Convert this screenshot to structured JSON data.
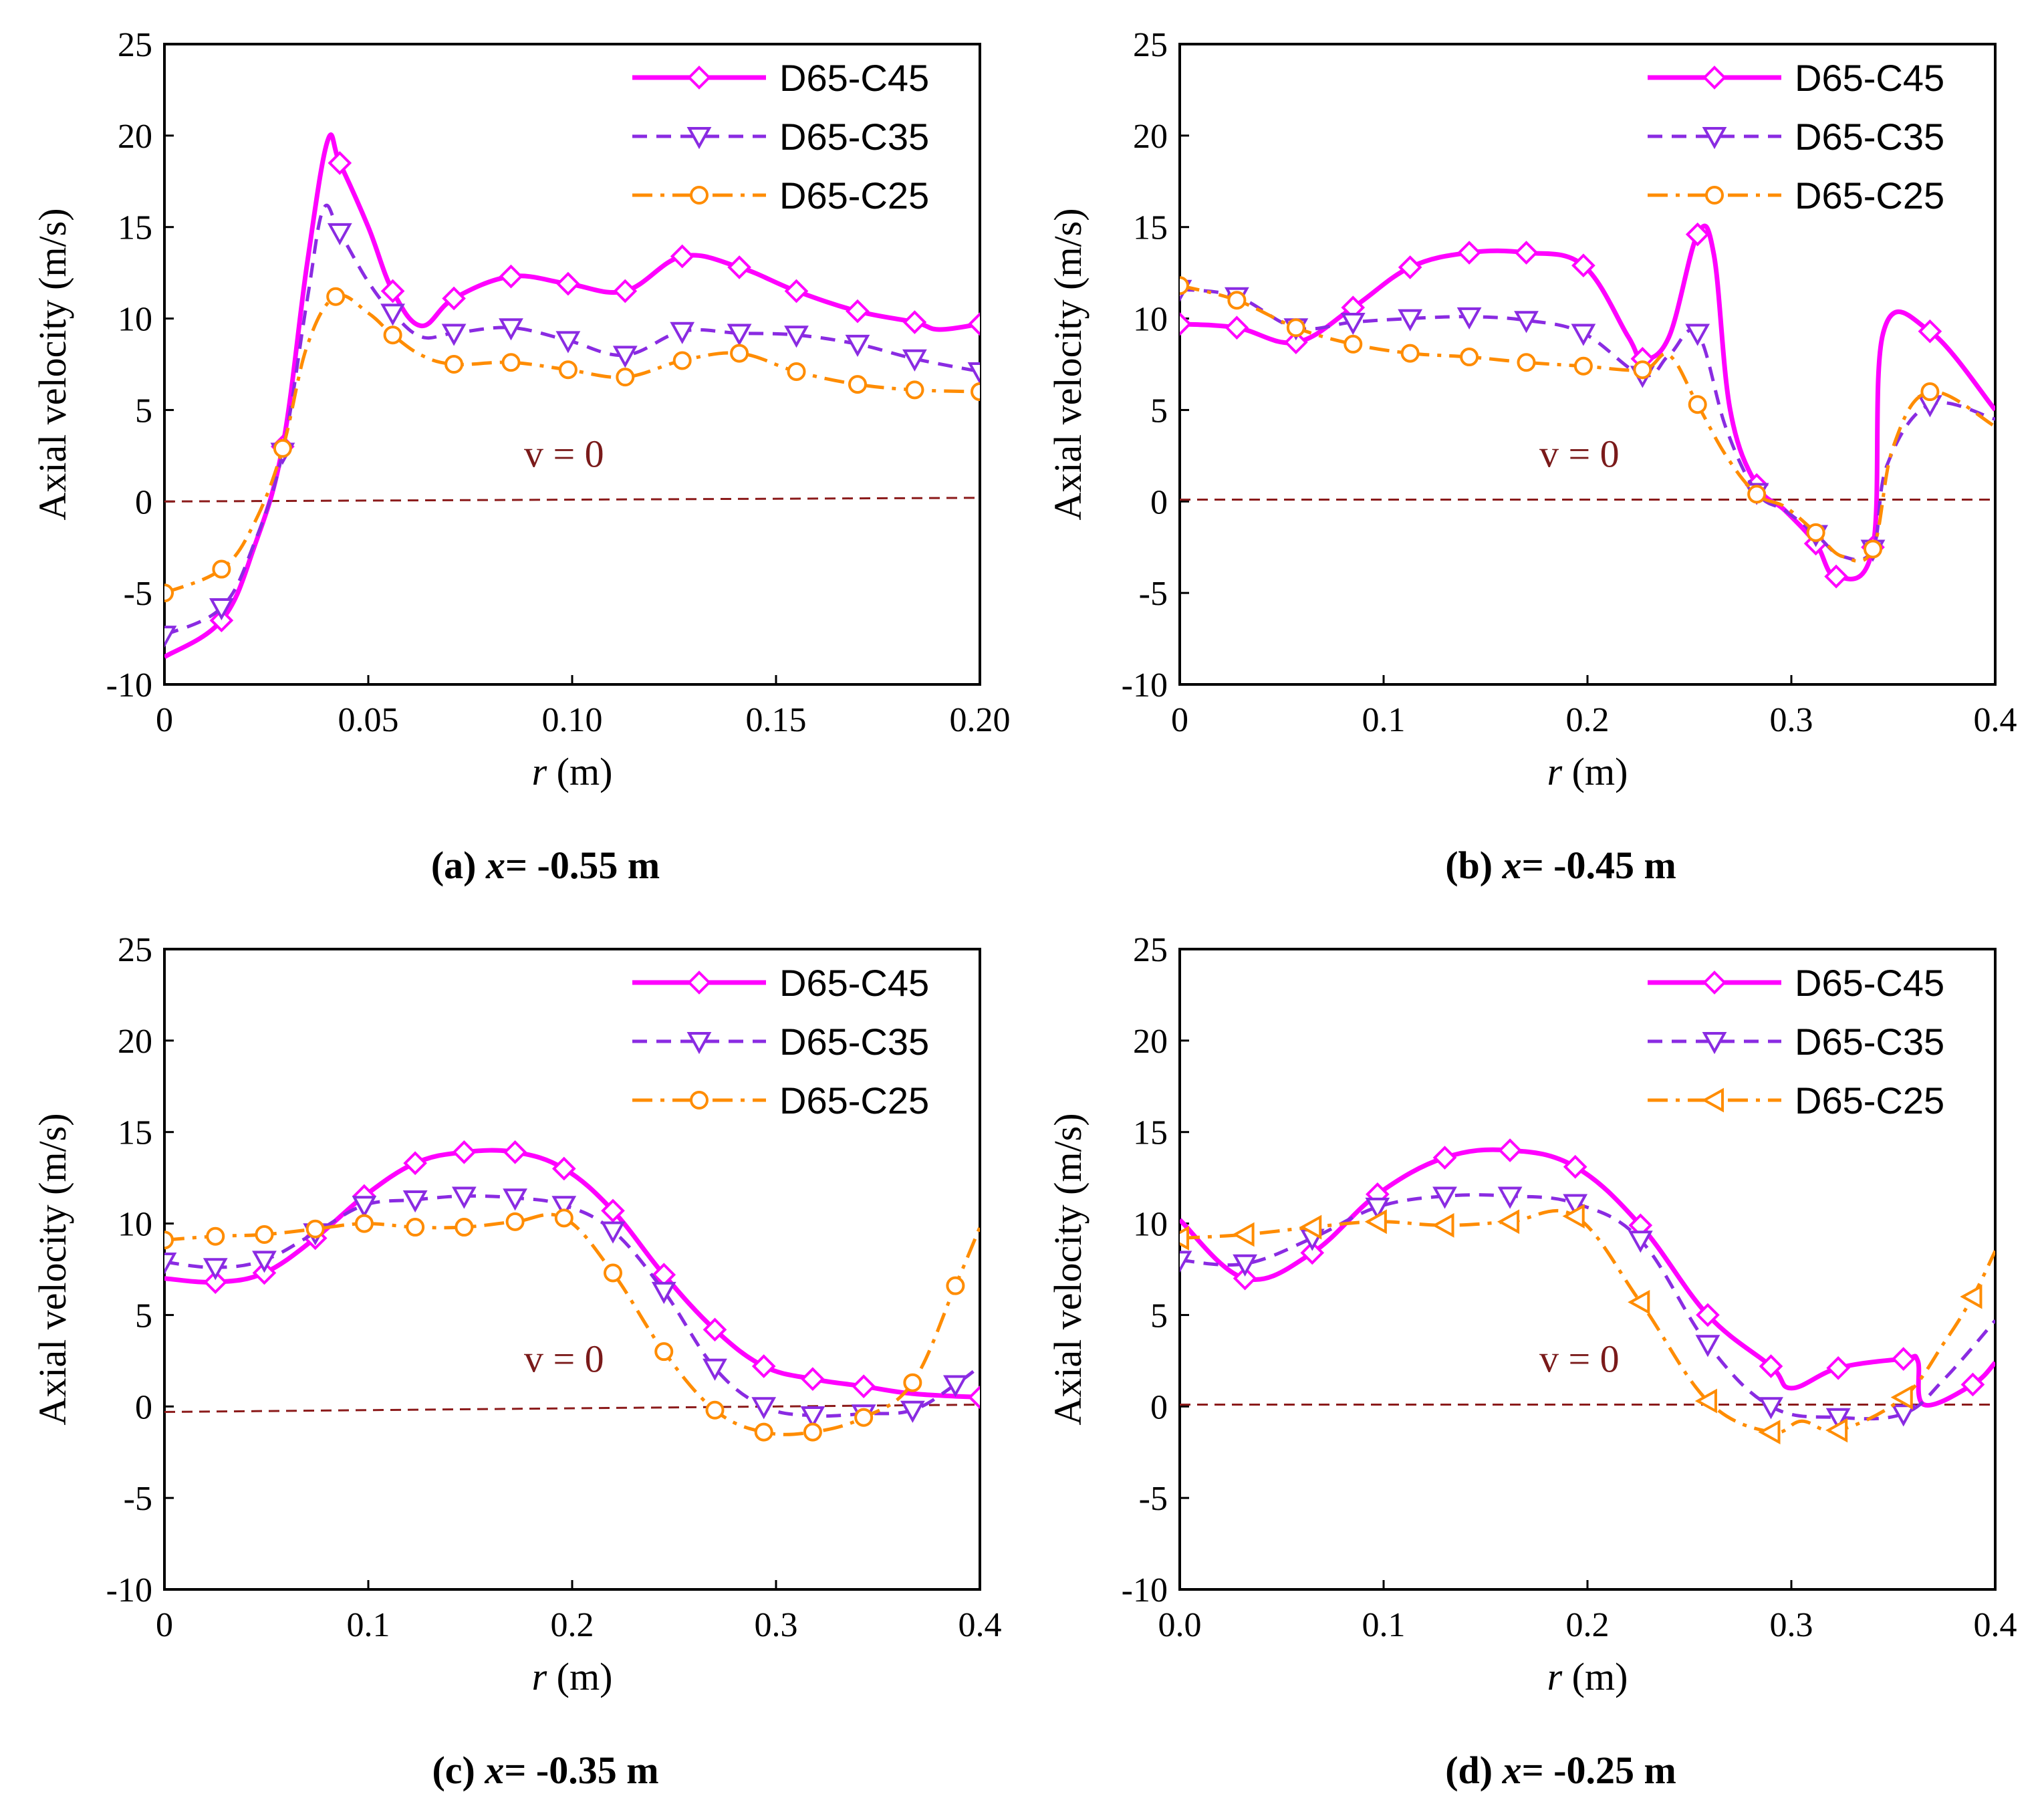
{
  "figure": {
    "colors": {
      "c45": "#ff00ff",
      "c35": "#8a2be2",
      "c25": "#ff8c00",
      "zero": "#8b1a1a"
    },
    "legend_labels": [
      "D65-C45",
      "D65-C35",
      "D65-C25"
    ],
    "zero_label": "v = 0"
  },
  "chart_data": [
    {
      "type": "line",
      "panel": "a",
      "caption": "(a) x= -0.55 m",
      "caption_prefix": "(a) ",
      "caption_var": "x",
      "caption_rest": "= -0.55 m",
      "xlabel": "r (m)",
      "xlabel_var": "r",
      "xlabel_unit": " (m)",
      "ylabel": "Axial velocity (m/s)",
      "xlim": [
        0,
        0.2
      ],
      "ylim": [
        -10,
        25
      ],
      "xticks": [
        0,
        0.05,
        0.1,
        0.15,
        0.2
      ],
      "xtick_labels": [
        "0",
        "0.05",
        "0.10",
        "0.15",
        "0.20"
      ],
      "yticks": [
        -10,
        -5,
        0,
        5,
        10,
        15,
        20,
        25
      ],
      "ytick_labels": [
        "-10",
        "-5",
        "0",
        "5",
        "10",
        "15",
        "20",
        "25"
      ],
      "zero_line": [
        [
          0,
          0
        ],
        [
          0.2,
          0.2
        ]
      ],
      "series": [
        {
          "name": "D65-C45",
          "marker": "diamond",
          "dash": "solid",
          "x": [
            0,
            0.014,
            0.022,
            0.029,
            0.035,
            0.04,
            0.043,
            0.05,
            0.056,
            0.063,
            0.071,
            0.085,
            0.099,
            0.113,
            0.127,
            0.141,
            0.155,
            0.17,
            0.184,
            0.19,
            0.2
          ],
          "y": [
            -8.5,
            -6.5,
            -2.5,
            3,
            13,
            19.7,
            18.5,
            15,
            11.5,
            9.6,
            11.1,
            12.3,
            11.9,
            11.5,
            13.4,
            12.8,
            11.5,
            10.4,
            9.8,
            9.4,
            9.7
          ],
          "marker_idx": [
            1,
            3,
            6,
            8,
            10,
            11,
            12,
            13,
            14,
            15,
            16,
            17,
            18,
            20
          ]
        },
        {
          "name": "D65-C35",
          "marker": "triangle-down",
          "dash": "dash",
          "x": [
            0,
            0.014,
            0.022,
            0.029,
            0.035,
            0.039,
            0.043,
            0.05,
            0.056,
            0.063,
            0.071,
            0.085,
            0.099,
            0.113,
            0.127,
            0.141,
            0.155,
            0.17,
            0.184,
            0.2
          ],
          "y": [
            -7.3,
            -5.8,
            -2.3,
            2.7,
            11,
            16,
            14.7,
            12,
            10.3,
            9,
            9.2,
            9.5,
            8.8,
            8,
            9.3,
            9.2,
            9.1,
            8.6,
            7.8,
            7.1
          ],
          "marker_idx": [
            0,
            1,
            3,
            6,
            8,
            10,
            11,
            12,
            13,
            14,
            15,
            16,
            17,
            18,
            19
          ]
        },
        {
          "name": "D65-C25",
          "marker": "circle",
          "dash": "dashdot",
          "x": [
            0,
            0.014,
            0.022,
            0.029,
            0.035,
            0.042,
            0.05,
            0.056,
            0.063,
            0.071,
            0.085,
            0.099,
            0.113,
            0.127,
            0.141,
            0.155,
            0.17,
            0.184,
            0.2
          ],
          "y": [
            -5,
            -3.7,
            -1.2,
            2.9,
            8.5,
            11.2,
            10.3,
            9.1,
            8,
            7.5,
            7.6,
            7.2,
            6.8,
            7.7,
            8.1,
            7.1,
            6.4,
            6.1,
            6
          ],
          "marker_idx": [
            0,
            1,
            3,
            5,
            7,
            9,
            10,
            11,
            12,
            13,
            14,
            15,
            16,
            17,
            18
          ]
        }
      ]
    },
    {
      "type": "line",
      "panel": "b",
      "caption": "(b) x= -0.45 m",
      "caption_prefix": "(b) ",
      "caption_var": "x",
      "caption_rest": "= -0.45 m",
      "xlabel": "r (m)",
      "xlabel_var": "r",
      "xlabel_unit": " (m)",
      "ylabel": "Axial velocity (m/s)",
      "xlim": [
        0,
        0.4
      ],
      "ylim": [
        -10,
        25
      ],
      "xticks": [
        0,
        0.1,
        0.2,
        0.3,
        0.4
      ],
      "xtick_labels": [
        "0",
        "0.1",
        "0.2",
        "0.3",
        "0.4"
      ],
      "yticks": [
        -10,
        -5,
        0,
        5,
        10,
        15,
        20,
        25
      ],
      "ytick_labels": [
        "-10",
        "-5",
        "0",
        "5",
        "10",
        "15",
        "20",
        "25"
      ],
      "zero_line": [
        [
          0,
          0.1
        ],
        [
          0.4,
          0.1
        ]
      ],
      "series": [
        {
          "name": "D65-C45",
          "marker": "diamond",
          "dash": "solid",
          "x": [
            0,
            0.028,
            0.057,
            0.085,
            0.113,
            0.142,
            0.17,
            0.198,
            0.22,
            0.227,
            0.24,
            0.254,
            0.262,
            0.27,
            0.283,
            0.297,
            0.312,
            0.322,
            0.34,
            0.345,
            0.368,
            0.4
          ],
          "y": [
            9.7,
            9.5,
            8.7,
            10.6,
            12.8,
            13.6,
            13.6,
            12.9,
            9,
            7.8,
            9,
            14.6,
            13.5,
            5,
            0.9,
            -0.5,
            -2.3,
            -4.1,
            -2.5,
            9.2,
            9.3,
            5
          ],
          "marker_idx": [
            0,
            1,
            2,
            3,
            4,
            5,
            6,
            7,
            9,
            11,
            14,
            16,
            17,
            18,
            20
          ]
        },
        {
          "name": "D65-C35",
          "marker": "triangle-down",
          "dash": "dash",
          "x": [
            0,
            0.028,
            0.057,
            0.085,
            0.113,
            0.142,
            0.17,
            0.198,
            0.227,
            0.24,
            0.254,
            0.268,
            0.283,
            0.297,
            0.312,
            0.325,
            0.34,
            0.347,
            0.368,
            0.4
          ],
          "y": [
            11.6,
            11.2,
            9.5,
            9.8,
            10,
            10.1,
            9.9,
            9.2,
            6.9,
            8,
            9.2,
            4,
            0.5,
            -0.5,
            -1.8,
            -3,
            -2.6,
            2,
            5.3,
            4.5
          ],
          "marker_idx": [
            0,
            1,
            2,
            3,
            4,
            5,
            6,
            7,
            8,
            10,
            12,
            14,
            16,
            18
          ]
        },
        {
          "name": "D65-C25",
          "marker": "circle",
          "dash": "dashdot",
          "x": [
            0,
            0.028,
            0.057,
            0.085,
            0.113,
            0.142,
            0.17,
            0.198,
            0.227,
            0.24,
            0.254,
            0.268,
            0.283,
            0.297,
            0.312,
            0.325,
            0.34,
            0.35,
            0.368,
            0.4
          ],
          "y": [
            11.8,
            11,
            9.5,
            8.6,
            8.1,
            7.9,
            7.6,
            7.4,
            7.2,
            8,
            5.3,
            2.5,
            0.4,
            -0.3,
            -1.7,
            -3,
            -2.6,
            3,
            6,
            4.1
          ],
          "marker_idx": [
            0,
            1,
            2,
            3,
            4,
            5,
            6,
            7,
            8,
            10,
            12,
            14,
            16,
            18
          ]
        }
      ]
    },
    {
      "type": "line",
      "panel": "c",
      "caption": "(c) x= -0.35 m",
      "caption_prefix": "(c) ",
      "caption_var": "x",
      "caption_rest": "= -0.35 m",
      "xlabel": "r (m)",
      "xlabel_var": "r",
      "xlabel_unit": " (m)",
      "ylabel": "Axial velocity (m/s)",
      "xlim": [
        0,
        0.4
      ],
      "ylim": [
        -10,
        25
      ],
      "xticks": [
        0,
        0.1,
        0.2,
        0.3,
        0.4
      ],
      "xtick_labels": [
        "0",
        "0.1",
        "0.2",
        "0.3",
        "0.4"
      ],
      "yticks": [
        -10,
        -5,
        0,
        5,
        10,
        15,
        20,
        25
      ],
      "ytick_labels": [
        "-10",
        "-5",
        "0",
        "5",
        "10",
        "15",
        "20",
        "25"
      ],
      "zero_line": [
        [
          0,
          -0.3
        ],
        [
          0.4,
          0.1
        ]
      ],
      "series": [
        {
          "name": "D65-C45",
          "marker": "diamond",
          "dash": "solid",
          "x": [
            0,
            0.025,
            0.049,
            0.074,
            0.098,
            0.123,
            0.147,
            0.172,
            0.196,
            0.22,
            0.245,
            0.27,
            0.294,
            0.318,
            0.343,
            0.367,
            0.4
          ],
          "y": [
            7,
            6.8,
            7.3,
            9.2,
            11.5,
            13.3,
            13.9,
            13.9,
            13,
            10.7,
            7.2,
            4.2,
            2.2,
            1.5,
            1.1,
            0.7,
            0.5
          ],
          "marker_idx": [
            1,
            2,
            3,
            4,
            5,
            6,
            7,
            8,
            9,
            10,
            11,
            12,
            13,
            14,
            16
          ]
        },
        {
          "name": "D65-C35",
          "marker": "triangle-down",
          "dash": "dash",
          "x": [
            0,
            0.025,
            0.049,
            0.074,
            0.098,
            0.123,
            0.147,
            0.172,
            0.196,
            0.22,
            0.245,
            0.27,
            0.294,
            0.318,
            0.343,
            0.367,
            0.388,
            0.4
          ],
          "y": [
            7.9,
            7.6,
            8,
            9.5,
            11,
            11.3,
            11.5,
            11.4,
            11,
            9.6,
            6.3,
            2.1,
            0,
            -0.5,
            -0.4,
            -0.2,
            1.2,
            2.2
          ],
          "marker_idx": [
            0,
            1,
            2,
            3,
            4,
            5,
            6,
            7,
            8,
            9,
            10,
            11,
            12,
            13,
            14,
            15,
            16
          ]
        },
        {
          "name": "D65-C25",
          "marker": "circle",
          "dash": "dashdot",
          "x": [
            0,
            0.025,
            0.049,
            0.074,
            0.098,
            0.123,
            0.147,
            0.172,
            0.196,
            0.22,
            0.245,
            0.27,
            0.294,
            0.318,
            0.343,
            0.367,
            0.388,
            0.4
          ],
          "y": [
            9.1,
            9.3,
            9.4,
            9.7,
            10,
            9.8,
            9.8,
            10.1,
            10.3,
            7.3,
            3,
            -0.2,
            -1.4,
            -1.4,
            -0.6,
            1.3,
            6.6,
            9.8
          ],
          "marker_idx": [
            0,
            1,
            2,
            3,
            4,
            5,
            6,
            7,
            8,
            9,
            10,
            11,
            12,
            13,
            14,
            15,
            16
          ]
        }
      ]
    },
    {
      "type": "line",
      "panel": "d",
      "caption": "(d) x= -0.25 m",
      "caption_prefix": "(d) ",
      "caption_var": "x",
      "caption_rest": "= -0.25 m",
      "xlabel": "r (m)",
      "xlabel_var": "r",
      "xlabel_unit": " (m)",
      "ylabel": "Axial velocity (m/s)",
      "xlim": [
        0,
        0.4
      ],
      "ylim": [
        -10,
        25
      ],
      "xticks": [
        0,
        0.1,
        0.2,
        0.3,
        0.4
      ],
      "xtick_labels": [
        "0.0",
        "0.1",
        "0.2",
        "0.3",
        "0.4"
      ],
      "yticks": [
        -10,
        -5,
        0,
        5,
        10,
        15,
        20,
        25
      ],
      "ytick_labels": [
        "-10",
        "-5",
        "0",
        "5",
        "10",
        "15",
        "20",
        "25"
      ],
      "zero_line": [
        [
          0,
          0.1
        ],
        [
          0.4,
          0.1
        ]
      ],
      "series": [
        {
          "name": "D65-C45",
          "marker": "diamond",
          "dash": "solid",
          "x": [
            0,
            0.032,
            0.065,
            0.097,
            0.13,
            0.162,
            0.194,
            0.226,
            0.259,
            0.29,
            0.3,
            0.323,
            0.355,
            0.362,
            0.365,
            0.389,
            0.4
          ],
          "y": [
            10.2,
            7,
            8.4,
            11.6,
            13.6,
            14,
            13.1,
            9.9,
            5,
            2.2,
            1,
            2.1,
            2.6,
            2.5,
            0.1,
            1.2,
            2.4
          ],
          "marker_idx": [
            1,
            2,
            3,
            4,
            5,
            6,
            7,
            8,
            9,
            11,
            12,
            15
          ]
        },
        {
          "name": "D65-C35",
          "marker": "triangle-down",
          "dash": "dash",
          "x": [
            0,
            0.032,
            0.065,
            0.097,
            0.13,
            0.162,
            0.194,
            0.226,
            0.259,
            0.29,
            0.323,
            0.355,
            0.375,
            0.4
          ],
          "y": [
            8,
            7.8,
            9.2,
            10.9,
            11.5,
            11.5,
            11.1,
            9.1,
            3.4,
            0,
            -0.6,
            -0.4,
            1.5,
            4.7
          ],
          "marker_idx": [
            0,
            1,
            2,
            3,
            4,
            5,
            6,
            7,
            8,
            9,
            10,
            11
          ]
        },
        {
          "name": "D65-C25",
          "marker": "triangle-left",
          "dash": "dashdot",
          "x": [
            0,
            0.032,
            0.065,
            0.097,
            0.13,
            0.162,
            0.194,
            0.226,
            0.259,
            0.29,
            0.305,
            0.323,
            0.355,
            0.375,
            0.389,
            0.4
          ],
          "y": [
            9.2,
            9.4,
            9.8,
            10.1,
            9.9,
            10.1,
            10.4,
            5.7,
            0.3,
            -1.4,
            -0.8,
            -1.3,
            0.5,
            3.5,
            6,
            8.5
          ],
          "marker_idx": [
            0,
            1,
            2,
            3,
            4,
            5,
            6,
            7,
            8,
            9,
            11,
            12,
            14
          ]
        }
      ]
    }
  ]
}
